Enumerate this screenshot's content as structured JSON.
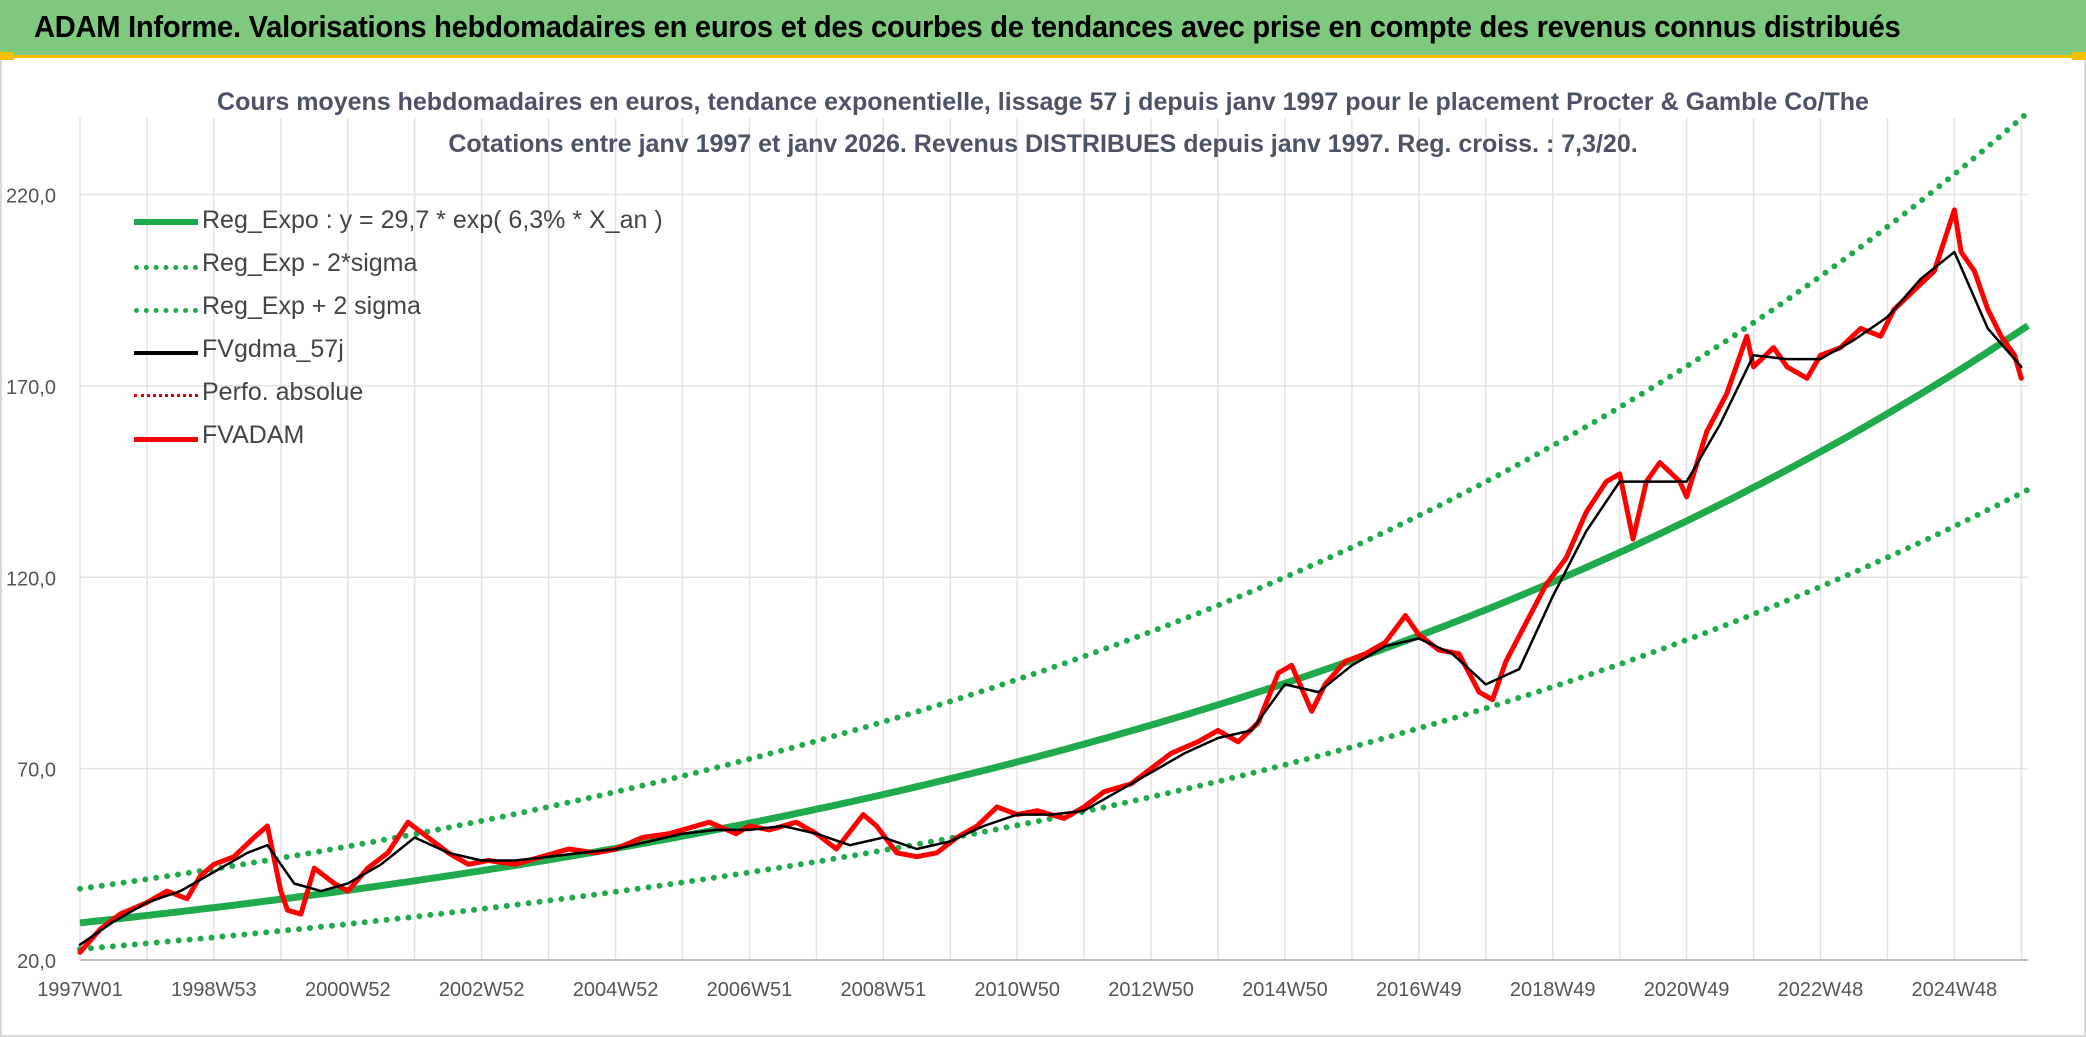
{
  "banner": {
    "title": "ADAM Informe. Valorisations hebdomadaires en euros et des courbes de tendances avec prise en compte des revenus connus distribués"
  },
  "colors": {
    "banner_bg": "#7ec97e",
    "accent_yellow": "#f2c200",
    "reg_expo": "#1faa4b",
    "sigma": "#1faa4b",
    "fvgdma": "#000000",
    "perfo": "#e00000",
    "fvadam": "#ff0000",
    "grid": "#e3e3e3"
  },
  "chart_data": {
    "type": "line",
    "title": "Cours moyens hebdomadaires en euros, tendance exponentielle, lissage 57 j depuis janv 1997 pour le placement Procter & Gamble Co/The",
    "subtitle": "Cotations entre janv 1997 et janv 2026. Revenus DISTRIBUES depuis janv 1997. Reg. croiss. : 7,3/20.",
    "xlabel": "",
    "ylabel": "",
    "xlim": [
      1997.0,
      2026.1
    ],
    "ylim": [
      20,
      240
    ],
    "grid": true,
    "legend_position": "top-left",
    "y_ticks": [
      20,
      70,
      120,
      170,
      220
    ],
    "y_tick_labels": [
      "20,0",
      "70,0",
      "120,0",
      "170,0",
      "220,0"
    ],
    "x_ticks": [
      1997.0,
      1999.0,
      2001.0,
      2003.0,
      2005.0,
      2007.0,
      2009.0,
      2011.0,
      2013.0,
      2015.0,
      2017.0,
      2019.0,
      2021.0,
      2023.0,
      2025.0
    ],
    "x_tick_labels": [
      "1997W01",
      "1998W53",
      "2000W52",
      "2002W52",
      "2004W52",
      "2006W51",
      "2008W51",
      "2010W50",
      "2012W50",
      "2014W50",
      "2016W49",
      "2018W49",
      "2020W49",
      "2022W48",
      "2024W48"
    ],
    "regression": {
      "a": 29.7,
      "rate": 0.063,
      "sigma_factor": 1.3
    },
    "legend": [
      {
        "key": "reg_expo",
        "label": "Reg_Expo : y = 29,7 * exp( 6,3% *  X_an )"
      },
      {
        "key": "sigma_minus",
        "label": "Reg_Exp - 2*sigma"
      },
      {
        "key": "sigma_plus",
        "label": "Reg_Exp + 2 sigma"
      },
      {
        "key": "fvgdma",
        "label": "FVgdma_57j"
      },
      {
        "key": "perfo",
        "label": "Perfo. absolue"
      },
      {
        "key": "fvadam",
        "label": "FVADAM"
      }
    ],
    "series": [
      {
        "name": "FVADAM",
        "x": [
          1997.0,
          1997.3,
          1997.6,
          1998.0,
          1998.3,
          1998.6,
          1998.8,
          1999.0,
          1999.3,
          1999.6,
          1999.8,
          2000.0,
          2000.1,
          2000.3,
          2000.5,
          2000.8,
          2001.0,
          2001.3,
          2001.6,
          2001.9,
          2002.2,
          2002.5,
          2002.8,
          2003.1,
          2003.5,
          2003.9,
          2004.3,
          2004.7,
          2005.0,
          2005.4,
          2005.8,
          2006.0,
          2006.4,
          2006.8,
          2007.0,
          2007.3,
          2007.7,
          2008.0,
          2008.3,
          2008.7,
          2008.9,
          2009.2,
          2009.5,
          2009.8,
          2010.1,
          2010.4,
          2010.7,
          2011.0,
          2011.3,
          2011.7,
          2012.0,
          2012.3,
          2012.7,
          2013.0,
          2013.3,
          2013.7,
          2014.0,
          2014.3,
          2014.6,
          2014.9,
          2015.1,
          2015.4,
          2015.6,
          2015.9,
          2016.2,
          2016.5,
          2016.8,
          2017.0,
          2017.3,
          2017.6,
          2017.9,
          2018.1,
          2018.3,
          2018.6,
          2018.9,
          2019.2,
          2019.5,
          2019.8,
          2020.0,
          2020.2,
          2020.4,
          2020.6,
          2020.9,
          2021.0,
          2021.3,
          2021.6,
          2021.9,
          2022.0,
          2022.3,
          2022.5,
          2022.8,
          2023.0,
          2023.3,
          2023.6,
          2023.9,
          2024.1,
          2024.4,
          2024.7,
          2025.0,
          2025.1,
          2025.3,
          2025.5,
          2025.7,
          2025.9,
          2026.0
        ],
        "y": [
          22.0,
          28.0,
          32.0,
          35.0,
          38.0,
          36.0,
          42.0,
          45.0,
          47.0,
          52.0,
          55.0,
          38.0,
          33.0,
          32.0,
          44.0,
          40.0,
          38.0,
          44.0,
          48.0,
          56.0,
          52.0,
          48.0,
          45.0,
          46.0,
          45.0,
          47.0,
          49.0,
          48.0,
          49.0,
          52.0,
          53.0,
          54.0,
          56.0,
          53.0,
          55.0,
          54.0,
          56.0,
          53.0,
          49.0,
          58.0,
          55.0,
          48.0,
          47.0,
          48.0,
          52.0,
          55.0,
          60.0,
          58.0,
          59.0,
          57.0,
          60.0,
          64.0,
          66.0,
          70.0,
          74.0,
          77.0,
          80.0,
          77.0,
          82.0,
          95.0,
          97.0,
          85.0,
          92.0,
          98.0,
          100.0,
          103.0,
          110.0,
          105.0,
          101.0,
          100.0,
          90.0,
          88.0,
          98.0,
          108.0,
          118.0,
          125.0,
          137.0,
          145.0,
          147.0,
          130.0,
          145.0,
          150.0,
          145.0,
          141.0,
          158.0,
          168.0,
          183.0,
          175.0,
          180.0,
          175.0,
          172.0,
          178.0,
          180.0,
          185.0,
          183.0,
          190.0,
          195.0,
          200.0,
          216.0,
          205.0,
          200.0,
          190.0,
          183.0,
          178.0,
          172.0
        ]
      },
      {
        "name": "FVgdma_57j",
        "x": [
          1997.0,
          1997.5,
          1998.0,
          1998.5,
          1999.0,
          1999.5,
          1999.8,
          2000.2,
          2000.6,
          2001.0,
          2001.5,
          2002.0,
          2002.5,
          2003.0,
          2003.5,
          2004.0,
          2004.5,
          2005.0,
          2005.5,
          2006.0,
          2006.5,
          2007.0,
          2007.5,
          2008.0,
          2008.5,
          2009.0,
          2009.5,
          2010.0,
          2010.5,
          2011.0,
          2011.5,
          2012.0,
          2012.5,
          2013.0,
          2013.5,
          2014.0,
          2014.5,
          2015.0,
          2015.5,
          2016.0,
          2016.5,
          2017.0,
          2017.5,
          2018.0,
          2018.5,
          2019.0,
          2019.5,
          2020.0,
          2020.5,
          2021.0,
          2021.5,
          2022.0,
          2022.5,
          2023.0,
          2023.5,
          2024.0,
          2024.5,
          2025.0,
          2025.5,
          2026.0
        ],
        "y": [
          24.0,
          30.0,
          35.0,
          38.0,
          43.0,
          48.0,
          50.0,
          40.0,
          38.0,
          40.0,
          45.0,
          52.0,
          48.0,
          46.0,
          46.0,
          47.0,
          48.0,
          49.0,
          51.0,
          53.0,
          54.0,
          54.0,
          55.0,
          53.0,
          50.0,
          52.0,
          49.0,
          51.0,
          55.0,
          58.0,
          58.0,
          59.0,
          64.0,
          69.0,
          74.0,
          78.0,
          80.0,
          92.0,
          90.0,
          97.0,
          102.0,
          104.0,
          100.0,
          92.0,
          96.0,
          115.0,
          132.0,
          145.0,
          145.0,
          145.0,
          160.0,
          178.0,
          177.0,
          177.0,
          182.0,
          188.0,
          198.0,
          205.0,
          185.0,
          175.0
        ]
      }
    ]
  }
}
